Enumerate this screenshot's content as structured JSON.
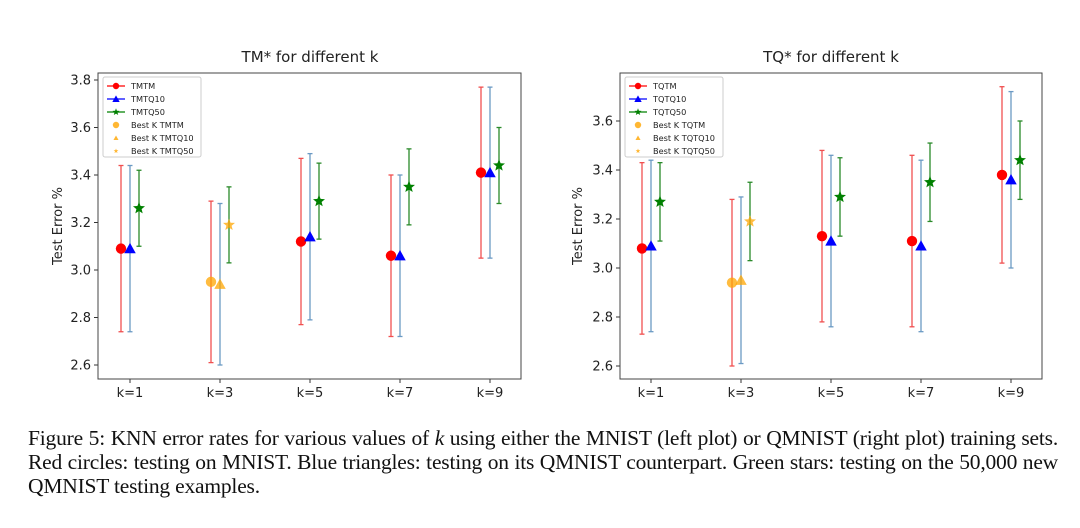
{
  "chart_data": [
    {
      "type": "scatter",
      "subtype": "errorbar",
      "title": "TM* for different k",
      "xlabel": "",
      "ylabel": "Test Error %",
      "categories": [
        "k=1",
        "k=3",
        "k=5",
        "k=7",
        "k=9"
      ],
      "ylim": [
        2.55,
        3.82
      ],
      "yticks": [
        "2.6",
        "2.8",
        "3.0",
        "3.2",
        "3.4",
        "3.6",
        "3.8"
      ],
      "grid": false,
      "legend_position": "top-left",
      "legend": [
        "TMTM",
        "TMTQ10",
        "TMTQ50",
        "Best K TMTM",
        "Best K TMTQ10",
        "Best K TMTQ50"
      ],
      "best_k_index": 1,
      "series": [
        {
          "name": "TMTM",
          "marker": "circle",
          "color": "#ff0000",
          "bar_color": "#f05050",
          "values": [
            3.09,
            2.95,
            3.12,
            3.06,
            3.41
          ],
          "lower": [
            2.74,
            2.61,
            2.77,
            2.72,
            3.05
          ],
          "upper": [
            3.44,
            3.29,
            3.47,
            3.4,
            3.77
          ]
        },
        {
          "name": "TMTQ10",
          "marker": "triangle",
          "color": "#0000ff",
          "bar_color": "#6b9ac4",
          "values": [
            3.09,
            2.94,
            3.14,
            3.06,
            3.41
          ],
          "lower": [
            2.74,
            2.6,
            2.79,
            2.72,
            3.05
          ],
          "upper": [
            3.44,
            3.28,
            3.49,
            3.4,
            3.77
          ]
        },
        {
          "name": "TMTQ50",
          "marker": "star",
          "color": "#008000",
          "bar_color": "#2a8a2a",
          "values": [
            3.26,
            3.19,
            3.29,
            3.35,
            3.44
          ],
          "lower": [
            3.1,
            3.03,
            3.13,
            3.19,
            3.28
          ],
          "upper": [
            3.42,
            3.35,
            3.45,
            3.51,
            3.6
          ]
        }
      ],
      "best_color": "#ffa500"
    },
    {
      "type": "scatter",
      "subtype": "errorbar",
      "title": "TQ* for different k",
      "xlabel": "",
      "ylabel": "Test Error %",
      "categories": [
        "k=1",
        "k=3",
        "k=5",
        "k=7",
        "k=9"
      ],
      "ylim": [
        2.55,
        3.78
      ],
      "yticks": [
        "2.6",
        "2.8",
        "3.0",
        "3.2",
        "3.4",
        "3.6"
      ],
      "grid": false,
      "legend_position": "top-left",
      "legend": [
        "TQTM",
        "TQTQ10",
        "TQTQ50",
        "Best K TQTM",
        "Best K TQTQ10",
        "Best K TQTQ50"
      ],
      "best_k_index": 1,
      "series": [
        {
          "name": "TQTM",
          "marker": "circle",
          "color": "#ff0000",
          "bar_color": "#f05050",
          "values": [
            3.08,
            2.94,
            3.13,
            3.11,
            3.38
          ],
          "lower": [
            2.73,
            2.6,
            2.78,
            2.76,
            3.02
          ],
          "upper": [
            3.43,
            3.28,
            3.48,
            3.46,
            3.74
          ]
        },
        {
          "name": "TQTQ10",
          "marker": "triangle",
          "color": "#0000ff",
          "bar_color": "#6b9ac4",
          "values": [
            3.09,
            2.95,
            3.11,
            3.09,
            3.36
          ],
          "lower": [
            2.74,
            2.61,
            2.76,
            2.74,
            3.0
          ],
          "upper": [
            3.44,
            3.29,
            3.46,
            3.44,
            3.72
          ]
        },
        {
          "name": "TQTQ50",
          "marker": "star",
          "color": "#008000",
          "bar_color": "#2a8a2a",
          "values": [
            3.27,
            3.19,
            3.29,
            3.35,
            3.44
          ],
          "lower": [
            3.11,
            3.03,
            3.13,
            3.19,
            3.28
          ],
          "upper": [
            3.43,
            3.35,
            3.45,
            3.51,
            3.6
          ]
        }
      ],
      "best_color": "#ffa500"
    }
  ],
  "caption": {
    "label": "Figure 5:",
    "part1": " KNN error rates for various values of ",
    "k": "k",
    "part2": " using either the MNIST (left plot) or QMNIST (right plot) training sets.  Red circles: testing on MNIST. Blue triangles: testing on its QMNIST counterpart. Green stars: testing on the 50,000 new QMNIST testing examples."
  }
}
